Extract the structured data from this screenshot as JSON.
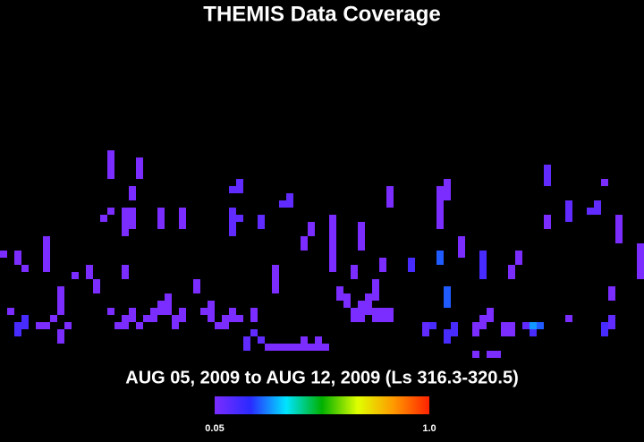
{
  "title": "THEMIS Data Coverage",
  "subtitle": "AUG 05, 2009 to AUG 12, 2009 (Ls 316.3-320.5)",
  "colorbar": {
    "clim": [
      0.05,
      1
    ],
    "ticks": [
      0.05,
      {
        "value": 1,
        "label": "1.0"
      }
    ],
    "colormap": [
      "#7b2cff",
      "#2a2aff",
      "#00e5ff",
      "#00b000",
      "#e0ff00",
      "#ff9900",
      "#ff2200"
    ]
  },
  "cells": [
    {
      "col": 15,
      "row": 1,
      "height": 4,
      "value": 0.05
    },
    {
      "col": 19,
      "row": 2,
      "height": 3,
      "value": 0.05
    },
    {
      "col": 18,
      "row": 6,
      "height": 2,
      "value": 0.05
    },
    {
      "col": 15,
      "row": 9,
      "height": 1,
      "value": 0.05
    },
    {
      "col": 14,
      "row": 10,
      "height": 1,
      "value": 0.05
    },
    {
      "col": 17,
      "row": 9,
      "height": 4,
      "value": 0.05
    },
    {
      "col": 18,
      "row": 9,
      "height": 3,
      "value": 0.05
    },
    {
      "col": 22,
      "row": 9,
      "height": 3,
      "value": 0.05
    },
    {
      "col": 25,
      "row": 9,
      "height": 3,
      "value": 0.05
    },
    {
      "col": 32,
      "row": 6,
      "height": 1,
      "value": 0.1
    },
    {
      "col": 33,
      "row": 5,
      "height": 2,
      "value": 0.1
    },
    {
      "col": 32,
      "row": 9,
      "height": 4,
      "value": 0.1
    },
    {
      "col": 33,
      "row": 10,
      "height": 1,
      "value": 0.1
    },
    {
      "col": 36,
      "row": 10,
      "height": 2,
      "value": 0.1
    },
    {
      "col": 40,
      "row": 7,
      "height": 2,
      "value": 0.1
    },
    {
      "col": 39,
      "row": 8,
      "height": 1,
      "value": 0.1
    },
    {
      "col": 43,
      "row": 11,
      "height": 2,
      "value": 0.05
    },
    {
      "col": 42,
      "row": 13,
      "height": 2,
      "value": 0.05
    },
    {
      "col": 46,
      "row": 10,
      "height": 8,
      "value": 0.05
    },
    {
      "col": 50,
      "row": 11,
      "height": 4,
      "value": 0.05
    },
    {
      "col": 54,
      "row": 6,
      "height": 3,
      "value": 0.05
    },
    {
      "col": 61,
      "row": 6,
      "height": 6,
      "value": 0.05
    },
    {
      "col": 62,
      "row": 5,
      "height": 2,
      "value": 0.05
    },
    {
      "col": 62,
      "row": 7,
      "height": 1,
      "value": 0.05
    },
    {
      "col": 64,
      "row": 13,
      "height": 3,
      "value": 0.05
    },
    {
      "col": 76,
      "row": 3,
      "height": 3,
      "value": 0.1
    },
    {
      "col": 76,
      "row": 10,
      "height": 2,
      "value": 0.05
    },
    {
      "col": 79,
      "row": 8,
      "height": 3,
      "value": 0.1
    },
    {
      "col": 82,
      "row": 9,
      "height": 1,
      "value": 0.1
    },
    {
      "col": 83,
      "row": 8,
      "height": 2,
      "value": 0.1
    },
    {
      "col": 84,
      "row": 5,
      "height": 1,
      "value": 0.05
    },
    {
      "col": 86,
      "row": 10,
      "height": 4,
      "value": 0.05
    },
    {
      "col": 89,
      "row": 14,
      "height": 5,
      "value": 0.05
    },
    {
      "col": 0,
      "row": 15,
      "height": 1,
      "value": 0.05
    },
    {
      "col": 2,
      "row": 15,
      "height": 2,
      "value": 0.05
    },
    {
      "col": 3,
      "row": 17,
      "height": 1,
      "value": 0.05
    },
    {
      "col": 6,
      "row": 13,
      "height": 5,
      "value": 0.05
    },
    {
      "col": 10,
      "row": 18,
      "height": 1,
      "value": 0.05
    },
    {
      "col": 12,
      "row": 17,
      "height": 2,
      "value": 0.05
    },
    {
      "col": 13,
      "row": 19,
      "height": 2,
      "value": 0.05
    },
    {
      "col": 17,
      "row": 17,
      "height": 2,
      "value": 0.05
    },
    {
      "col": 27,
      "row": 19,
      "height": 2,
      "value": 0.05
    },
    {
      "col": 38,
      "row": 17,
      "height": 4,
      "value": 0.05
    },
    {
      "col": 49,
      "row": 17,
      "height": 2,
      "value": 0.05
    },
    {
      "col": 53,
      "row": 16,
      "height": 2,
      "value": 0.05
    },
    {
      "col": 57,
      "row": 16,
      "height": 2,
      "value": 0.15
    },
    {
      "col": 61,
      "row": 15,
      "height": 2,
      "value": 0.25
    },
    {
      "col": 67,
      "row": 15,
      "height": 4,
      "value": 0.15
    },
    {
      "col": 71,
      "row": 17,
      "height": 2,
      "value": 0.05
    },
    {
      "col": 72,
      "row": 15,
      "height": 2,
      "value": 0.05
    },
    {
      "col": 52,
      "row": 19,
      "height": 3,
      "value": 0.05
    },
    {
      "col": 85,
      "row": 20,
      "height": 2,
      "value": 0.05
    },
    {
      "col": 62,
      "row": 20,
      "height": 3,
      "value": 0.25
    },
    {
      "col": 1,
      "row": 23,
      "height": 1,
      "value": 0.05
    },
    {
      "col": 2,
      "row": 25,
      "height": 2,
      "value": 0.15
    },
    {
      "col": 3,
      "row": 24,
      "height": 2,
      "value": 0.15
    },
    {
      "col": 5,
      "row": 25,
      "height": 1,
      "value": 0.05
    },
    {
      "col": 6,
      "row": 25,
      "height": 1,
      "value": 0.05
    },
    {
      "col": 7,
      "row": 24,
      "height": 1,
      "value": 0.05
    },
    {
      "col": 8,
      "row": 20,
      "height": 4,
      "value": 0.05
    },
    {
      "col": 8,
      "row": 26,
      "height": 2,
      "value": 0.05
    },
    {
      "col": 9,
      "row": 25,
      "height": 1,
      "value": 0.05
    },
    {
      "col": 15,
      "row": 23,
      "height": 1,
      "value": 0.05
    },
    {
      "col": 16,
      "row": 25,
      "height": 1,
      "value": 0.05
    },
    {
      "col": 17,
      "row": 24,
      "height": 2,
      "value": 0.05
    },
    {
      "col": 18,
      "row": 23,
      "height": 2,
      "value": 0.05
    },
    {
      "col": 19,
      "row": 25,
      "height": 1,
      "value": 0.05
    },
    {
      "col": 20,
      "row": 24,
      "height": 1,
      "value": 0.05
    },
    {
      "col": 21,
      "row": 23,
      "height": 2,
      "value": 0.05
    },
    {
      "col": 22,
      "row": 22,
      "height": 2,
      "value": 0.05
    },
    {
      "col": 23,
      "row": 21,
      "height": 3,
      "value": 0.05
    },
    {
      "col": 24,
      "row": 24,
      "height": 2,
      "value": 0.05
    },
    {
      "col": 25,
      "row": 23,
      "height": 2,
      "value": 0.05
    },
    {
      "col": 28,
      "row": 23,
      "height": 1,
      "value": 0.05
    },
    {
      "col": 29,
      "row": 22,
      "height": 3,
      "value": 0.05
    },
    {
      "col": 30,
      "row": 25,
      "height": 1,
      "value": 0.05
    },
    {
      "col": 31,
      "row": 24,
      "height": 2,
      "value": 0.05
    },
    {
      "col": 32,
      "row": 23,
      "height": 2,
      "value": 0.05
    },
    {
      "col": 33,
      "row": 24,
      "height": 1,
      "value": 0.05
    },
    {
      "col": 34,
      "row": 27,
      "height": 2,
      "value": 0.1
    },
    {
      "col": 35,
      "row": 26,
      "height": 1,
      "value": 0.1
    },
    {
      "col": 36,
      "row": 27,
      "height": 1,
      "value": 0.1
    },
    {
      "col": 35,
      "row": 23,
      "height": 2,
      "value": 0.05
    },
    {
      "col": 37,
      "row": 28,
      "height": 1,
      "value": 0.05
    },
    {
      "col": 38,
      "row": 28,
      "height": 1,
      "value": 0.05
    },
    {
      "col": 39,
      "row": 28,
      "height": 1,
      "value": 0.05
    },
    {
      "col": 40,
      "row": 28,
      "height": 1,
      "value": 0.05
    },
    {
      "col": 41,
      "row": 28,
      "height": 1,
      "value": 0.05
    },
    {
      "col": 42,
      "row": 27,
      "height": 2,
      "value": 0.05
    },
    {
      "col": 43,
      "row": 28,
      "height": 1,
      "value": 0.05
    },
    {
      "col": 44,
      "row": 27,
      "height": 2,
      "value": 0.05
    },
    {
      "col": 45,
      "row": 28,
      "height": 1,
      "value": 0.05
    },
    {
      "col": 47,
      "row": 20,
      "height": 2,
      "value": 0.05
    },
    {
      "col": 48,
      "row": 21,
      "height": 2,
      "value": 0.05
    },
    {
      "col": 49,
      "row": 23,
      "height": 2,
      "value": 0.05
    },
    {
      "col": 50,
      "row": 22,
      "height": 3,
      "value": 0.05
    },
    {
      "col": 51,
      "row": 21,
      "height": 3,
      "value": 0.05
    },
    {
      "col": 52,
      "row": 23,
      "height": 2,
      "value": 0.05
    },
    {
      "col": 53,
      "row": 23,
      "height": 2,
      "value": 0.05
    },
    {
      "col": 54,
      "row": 23,
      "height": 2,
      "value": 0.05
    },
    {
      "col": 59,
      "row": 25,
      "height": 2,
      "value": 0.1
    },
    {
      "col": 60,
      "row": 25,
      "height": 1,
      "value": 0.15
    },
    {
      "col": 62,
      "row": 26,
      "height": 2,
      "value": 0.15
    },
    {
      "col": 63,
      "row": 25,
      "height": 2,
      "value": 0.15
    },
    {
      "col": 66,
      "row": 25,
      "height": 2,
      "value": 0.05
    },
    {
      "col": 67,
      "row": 24,
      "height": 2,
      "value": 0.05
    },
    {
      "col": 68,
      "row": 23,
      "height": 2,
      "value": 0.05
    },
    {
      "col": 66,
      "row": 29,
      "height": 1,
      "value": 0.05
    },
    {
      "col": 68,
      "row": 29,
      "height": 1,
      "value": 0.05
    },
    {
      "col": 69,
      "row": 29,
      "height": 1,
      "value": 0.05
    },
    {
      "col": 70,
      "row": 25,
      "height": 2,
      "value": 0.05
    },
    {
      "col": 71,
      "row": 25,
      "height": 2,
      "value": 0.05
    },
    {
      "col": 73,
      "row": 25,
      "height": 1,
      "value": 0.1
    },
    {
      "col": 74,
      "row": 26,
      "height": 1,
      "value": 0.15
    },
    {
      "col": 75,
      "row": 25,
      "height": 1,
      "value": 0.25
    },
    {
      "col": 74,
      "row": 25,
      "height": 1,
      "value": 0.3
    },
    {
      "col": 79,
      "row": 24,
      "height": 1,
      "value": 0.05
    },
    {
      "col": 84,
      "row": 25,
      "height": 2,
      "value": 0.15
    },
    {
      "col": 85,
      "row": 24,
      "height": 2,
      "value": 0.1
    }
  ]
}
